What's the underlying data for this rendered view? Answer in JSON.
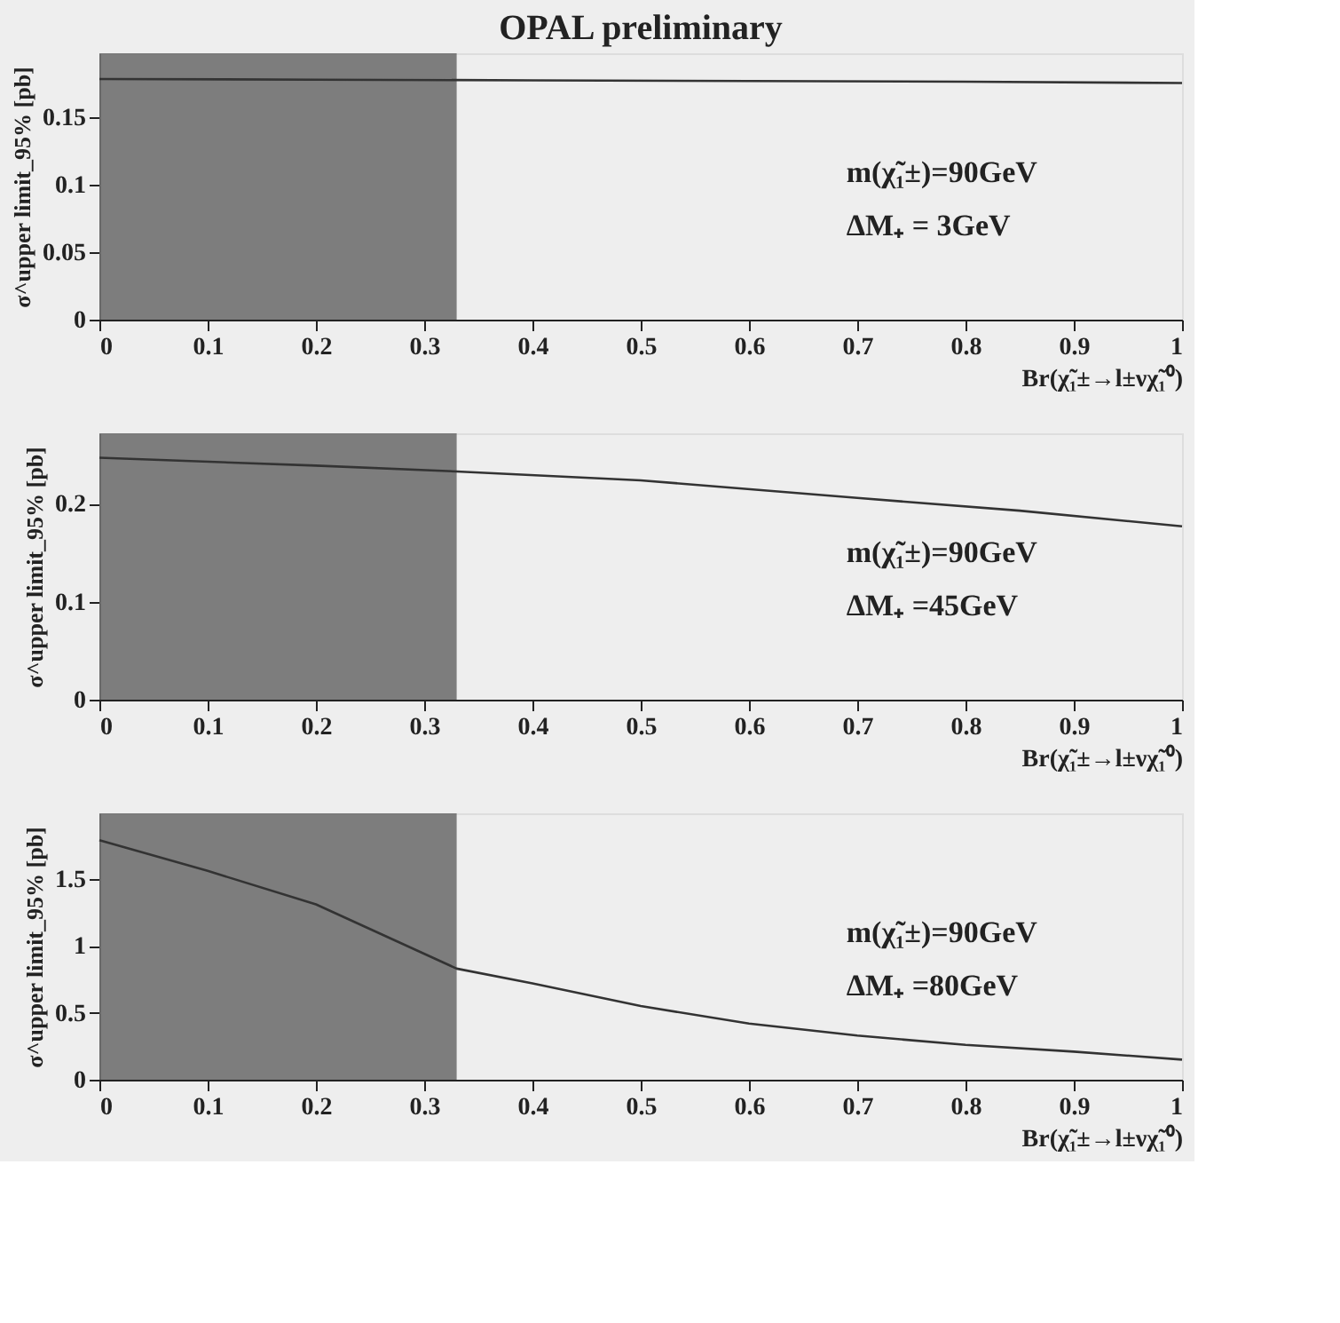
{
  "chart_data": [
    {
      "type": "line",
      "title": "OPAL preliminary",
      "xlabel": "Br(χ̃₁±→l±νχ̃₁⁰)",
      "ylabel": "σ^upper limit_95% [pb]",
      "x": [
        0,
        0.2,
        0.4,
        0.6,
        0.8,
        1.0
      ],
      "series": [
        {
          "color": "#333333",
          "values": [
            0.178,
            0.1775,
            0.177,
            0.1765,
            0.176,
            0.175
          ]
        }
      ],
      "xlim": [
        0,
        1
      ],
      "xticks": [
        0,
        0.1,
        0.2,
        0.3,
        0.4,
        0.5,
        0.6,
        0.7,
        0.8,
        0.9,
        1
      ],
      "ylim": [
        0,
        0.197
      ],
      "yticks": [
        0,
        0.05,
        0.1,
        0.15
      ],
      "bands": [
        {
          "axis": "x",
          "from": 0,
          "to": 0.33,
          "color": "#707070"
        }
      ],
      "annotations": [
        "m(χ̃₁±)=90GeV",
        "ΔM₊ = 3GeV"
      ],
      "grid": false,
      "legend": false,
      "line_style": "solid",
      "marker": "none"
    },
    {
      "type": "line",
      "xlabel": "Br(χ̃₁±→l±νχ̃₁⁰)",
      "ylabel": "σ^upper limit_95% [pb]",
      "x": [
        0,
        0.2,
        0.33,
        0.5,
        0.7,
        0.85,
        1.0
      ],
      "series": [
        {
          "color": "#333333",
          "values": [
            0.247,
            0.239,
            0.233,
            0.224,
            0.206,
            0.193,
            0.177
          ]
        }
      ],
      "xlim": [
        0,
        1
      ],
      "xticks": [
        0,
        0.1,
        0.2,
        0.3,
        0.4,
        0.5,
        0.6,
        0.7,
        0.8,
        0.9,
        1
      ],
      "ylim": [
        0,
        0.272
      ],
      "yticks": [
        0,
        0.1,
        0.2
      ],
      "bands": [
        {
          "axis": "x",
          "from": 0,
          "to": 0.33,
          "color": "#707070"
        }
      ],
      "annotations": [
        "m(χ̃₁±)=90GeV",
        "ΔM₊ =45GeV"
      ],
      "grid": false,
      "legend": false,
      "line_style": "solid",
      "marker": "none"
    },
    {
      "type": "line",
      "xlabel": "Br(χ̃₁±→l±νχ̃₁⁰)",
      "ylabel": "σ^upper limit_95% [pb]",
      "x": [
        0,
        0.1,
        0.2,
        0.33,
        0.4,
        0.5,
        0.6,
        0.7,
        0.8,
        0.9,
        1.0
      ],
      "series": [
        {
          "color": "#333333",
          "values": [
            1.79,
            1.56,
            1.31,
            0.83,
            0.72,
            0.55,
            0.42,
            0.33,
            0.26,
            0.21,
            0.15
          ]
        }
      ],
      "xlim": [
        0,
        1
      ],
      "xticks": [
        0,
        0.1,
        0.2,
        0.3,
        0.4,
        0.5,
        0.6,
        0.7,
        0.8,
        0.9,
        1
      ],
      "ylim": [
        0,
        1.99
      ],
      "yticks": [
        0,
        0.5,
        1,
        1.5
      ],
      "bands": [
        {
          "axis": "x",
          "from": 0,
          "to": 0.33,
          "color": "#707070"
        }
      ],
      "annotations": [
        "m(χ̃₁±)=90GeV",
        "ΔM₊ =80GeV"
      ],
      "grid": false,
      "legend": false,
      "line_style": "solid",
      "marker": "none"
    }
  ]
}
